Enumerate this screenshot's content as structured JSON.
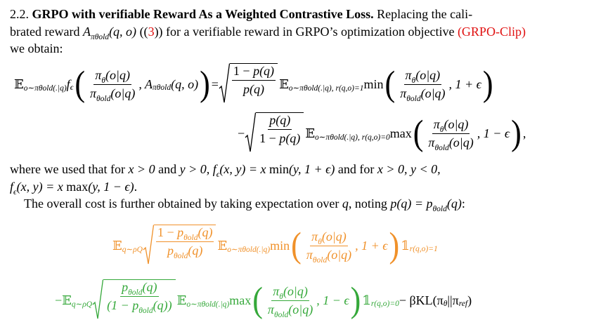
{
  "lines": [
    [
      {
        "t": "2.2. "
      },
      {
        "b": "GRPO with verifiable Reward As a Weighted Contrastive Loss."
      },
      {
        "t": " Replacing the cali-"
      }
    ],
    [
      {
        "t": "brated reward "
      },
      {
        "m": "A"
      },
      {
        "sub": "πθold"
      },
      {
        "m": "(q, o)"
      },
      {
        "t": " (("
      },
      {
        "link": "3"
      },
      {
        "t": ")) for a verifiable reward in GRPO’s optimization objective "
      },
      {
        "link": "(GRPO-Clip)"
      }
    ],
    [
      {
        "t": "we obtain:"
      }
    ],
    [
      {
        "t": "𝔼"
      },
      {
        "sub": "o∼πθold(.|q)"
      },
      {
        "m": "f"
      },
      {
        "sub": "ϵ"
      },
      {
        "big": "("
      },
      {
        "frac": {
          "num": [
            {
              "m": "π"
            },
            {
              "sub": "θ"
            },
            {
              "m": "(o|q)"
            }
          ],
          "den": [
            {
              "m": "π"
            },
            {
              "sub": "θold"
            },
            {
              "m": "(o|q)"
            }
          ]
        }
      },
      {
        "m": ", A"
      },
      {
        "sub": "πθold"
      },
      {
        "m": "(q, o)"
      },
      {
        "big": ")"
      },
      {
        "t": " = "
      },
      {
        "sqrt": {
          "num": [
            {
              "t": "1 − "
            },
            {
              "m": "p(q)"
            }
          ],
          "den": [
            {
              "m": "p(q)"
            }
          ]
        }
      },
      {
        "t": "𝔼"
      },
      {
        "sub": "o∼πθold(.|q), r(q,o)=1"
      },
      {
        "t": " min "
      },
      {
        "big": "("
      },
      {
        "frac": {
          "num": [
            {
              "m": "π"
            },
            {
              "sub": "θ"
            },
            {
              "m": "(o|q)"
            }
          ],
          "den": [
            {
              "m": "π"
            },
            {
              "sub": "θold"
            },
            {
              "m": "(o|q)"
            }
          ]
        }
      },
      {
        "m": ", 1 + ϵ"
      },
      {
        "big": ")"
      }
    ],
    [
      {
        "t": "− "
      },
      {
        "sqrt": {
          "num": [
            {
              "m": "p(q)"
            }
          ],
          "den": [
            {
              "t": "1 − "
            },
            {
              "m": "p(q)"
            }
          ]
        }
      },
      {
        "t": "𝔼"
      },
      {
        "sub": "o∼πθold(.|q), r(q,o)=0"
      },
      {
        "t": " max "
      },
      {
        "big": "("
      },
      {
        "frac": {
          "num": [
            {
              "m": "π"
            },
            {
              "sub": "θ"
            },
            {
              "m": "(o|q)"
            }
          ],
          "den": [
            {
              "m": "π"
            },
            {
              "sub": "θold"
            },
            {
              "m": "(o|q)"
            }
          ]
        }
      },
      {
        "m": ", 1 − ϵ"
      },
      {
        "big": ")"
      },
      {
        "t": " ,"
      }
    ],
    [
      {
        "t": "where we used that for "
      },
      {
        "m": "x > 0"
      },
      {
        "t": " and "
      },
      {
        "m": "y > 0,  f"
      },
      {
        "sub": "ϵ"
      },
      {
        "m": "(x, y) = x"
      },
      {
        "t": " min"
      },
      {
        "m": "(y, 1 + ϵ)"
      },
      {
        "t": " and for "
      },
      {
        "m": "x > 0, y < 0,"
      }
    ],
    [
      {
        "m": "f"
      },
      {
        "sub": "ϵ"
      },
      {
        "m": "(x, y) = x"
      },
      {
        "t": " max"
      },
      {
        "m": "(y, 1 − ϵ)"
      },
      {
        "t": "."
      }
    ],
    [
      {
        "t": "The overall cost is further obtained by taking expectation over "
      },
      {
        "m": "q"
      },
      {
        "t": ", noting "
      },
      {
        "m": "p(q) = p"
      },
      {
        "sub": "θold"
      },
      {
        "m": "(q)"
      },
      {
        "t": ":"
      }
    ],
    [
      {
        "t": "𝔼"
      },
      {
        "sub": "q∼ρQ"
      },
      {
        "sqrt": {
          "num": [
            {
              "t": "1 − "
            },
            {
              "m": "p"
            },
            {
              "sub": "θold"
            },
            {
              "m": "(q)"
            }
          ],
          "den": [
            {
              "m": "p"
            },
            {
              "sub": "θold"
            },
            {
              "m": "(q)"
            }
          ]
        }
      },
      {
        "t": "𝔼"
      },
      {
        "sub": "o∼πθold(.|q)"
      },
      {
        "t": " min "
      },
      {
        "big": "("
      },
      {
        "frac": {
          "num": [
            {
              "m": "π"
            },
            {
              "sub": "θ"
            },
            {
              "m": "(o|q)"
            }
          ],
          "den": [
            {
              "m": "π"
            },
            {
              "sub": "θold"
            },
            {
              "m": "(o|q)"
            }
          ]
        }
      },
      {
        "m": ", 1 + ϵ"
      },
      {
        "big": ")"
      },
      {
        "t": " 𝟙"
      },
      {
        "sub": "r(q,o)=1"
      }
    ],
    [
      {
        "t": "−𝔼"
      },
      {
        "sub": "q∼ρQ"
      },
      {
        "sqrt": {
          "num": [
            {
              "m": "p"
            },
            {
              "sub": "θold"
            },
            {
              "m": "(q)"
            }
          ],
          "den": [
            {
              "m": "(1 − p"
            },
            {
              "sub": "θold"
            },
            {
              "m": "(q))"
            }
          ]
        }
      },
      {
        "t": "𝔼"
      },
      {
        "sub": "o∼πθold(.|q)"
      },
      {
        "t": " max "
      },
      {
        "big": "("
      },
      {
        "frac": {
          "num": [
            {
              "m": "π"
            },
            {
              "sub": "θ"
            },
            {
              "m": "(o|q)"
            }
          ],
          "den": [
            {
              "m": "π"
            },
            {
              "sub": "θold"
            },
            {
              "m": "(o|q)"
            }
          ]
        }
      },
      {
        "m": ", 1 − ϵ"
      },
      {
        "big": ")"
      },
      {
        "t": " 𝟙"
      },
      {
        "sub": "r(q,o)=0"
      },
      {
        "t": " − βKL(π",
        "c": "#000000"
      },
      {
        "sub": "θ",
        "c": "#000000"
      },
      {
        "t": "||π",
        "c": "#000000"
      },
      {
        "sub": "ref",
        "c": "#000000"
      },
      {
        "t": ")",
        "c": "#000000"
      }
    ]
  ],
  "line_colors": [
    "#000000",
    "#000000",
    "#000000",
    "#000000",
    "#000000",
    "#000000",
    "#000000",
    "#000000",
    "#f0912a",
    "#35a83a"
  ],
  "link_color": "#e01010"
}
